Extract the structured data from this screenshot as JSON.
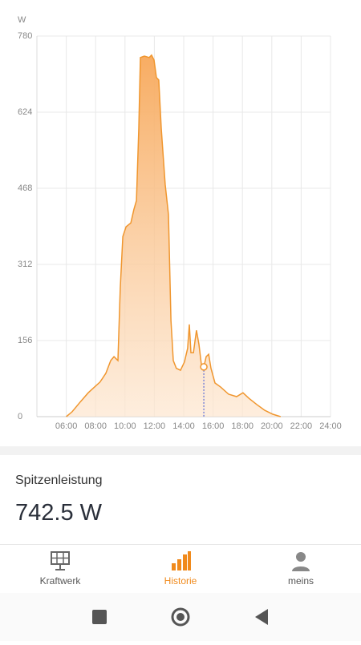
{
  "chart_data": {
    "type": "area",
    "y_label": "W",
    "x": [
      6.0,
      6.4,
      6.95,
      7.5,
      7.93,
      8.3,
      8.7,
      9.03,
      9.25,
      9.52,
      9.68,
      9.85,
      10.07,
      10.4,
      10.6,
      10.78,
      10.94,
      11.05,
      11.32,
      11.65,
      11.81,
      11.98,
      12.14,
      12.3,
      12.47,
      12.74,
      12.96,
      13.13,
      13.29,
      13.5,
      13.78,
      14.05,
      14.27,
      14.38,
      14.49,
      14.66,
      14.87,
      15.04,
      15.2,
      15.37,
      15.53,
      15.7,
      15.86,
      16.13,
      16.51,
      17.06,
      17.6,
      18.04,
      18.43,
      18.97,
      19.52,
      20.07,
      20.6
    ],
    "values": [
      0,
      10,
      30,
      49,
      61,
      71,
      89,
      115,
      123,
      115,
      263,
      369,
      389,
      397,
      424,
      443,
      591,
      736,
      739,
      736,
      741,
      731,
      695,
      690,
      591,
      476,
      414,
      197,
      115,
      99,
      95,
      112,
      140,
      189,
      131,
      131,
      177,
      148,
      107,
      102,
      123,
      128,
      99,
      69,
      61,
      46,
      41,
      49,
      38,
      25,
      13,
      5,
      0
    ],
    "color": "#f0962e",
    "selected_index": 39,
    "xlim": [
      4,
      24
    ],
    "xticks": [
      {
        "value": 6,
        "label": "06:00"
      },
      {
        "value": 8,
        "label": "08:00"
      },
      {
        "value": 10,
        "label": "10:00"
      },
      {
        "value": 12,
        "label": "12:00"
      },
      {
        "value": 14,
        "label": "14:00"
      },
      {
        "value": 16,
        "label": "16:00"
      },
      {
        "value": 18,
        "label": "18:00"
      },
      {
        "value": 20,
        "label": "20:00"
      },
      {
        "value": 22,
        "label": "22:00"
      },
      {
        "value": 24,
        "label": "24:00"
      }
    ],
    "ylim": [
      0,
      780
    ],
    "yticks": [
      0,
      156,
      312,
      468,
      624,
      780
    ],
    "grid": true
  },
  "summary": {
    "label": "Spitzenleistung",
    "value": "742.5 W"
  },
  "nav": {
    "items": [
      "Kraftwerk",
      "Historie",
      "meins"
    ],
    "active": 1
  }
}
